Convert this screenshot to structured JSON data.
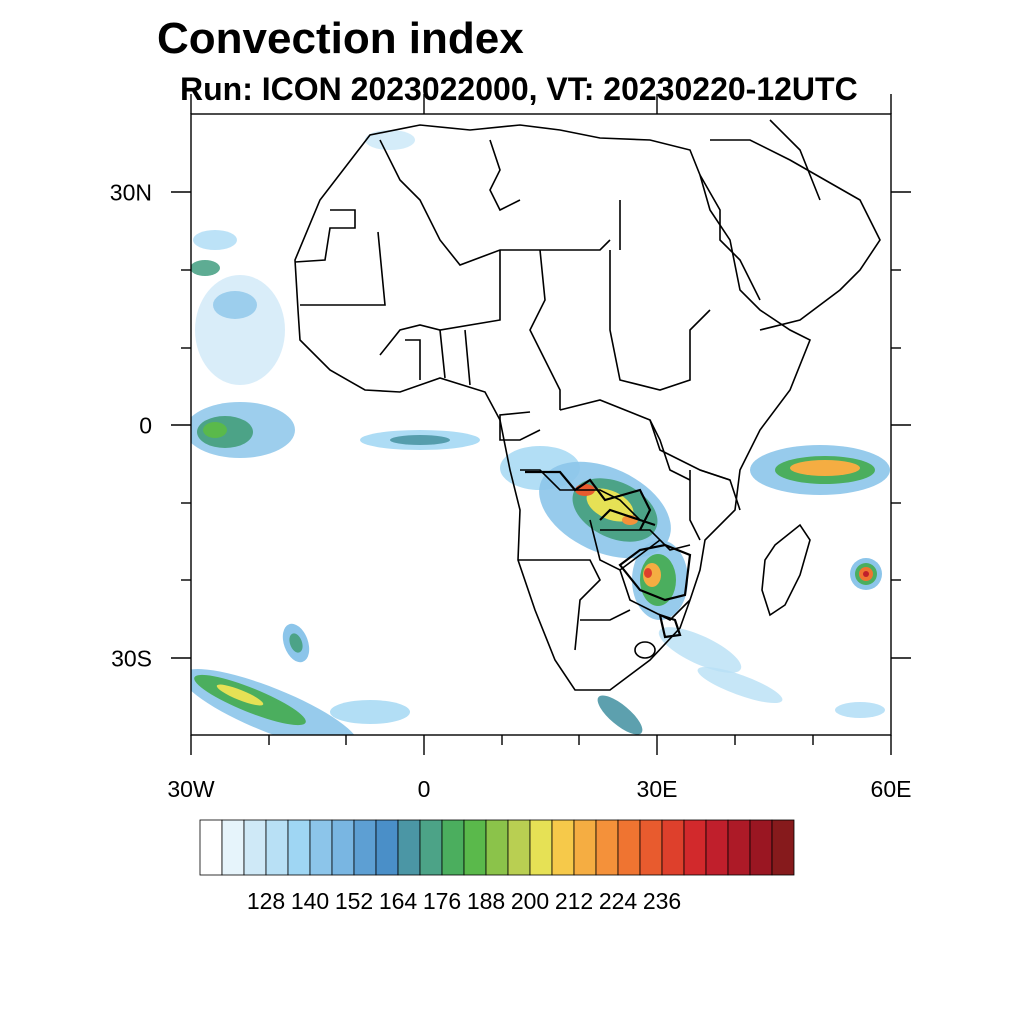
{
  "title": "Convection index",
  "subtitle": "Run: ICON 2023022000,  VT: 20230220-12UTC",
  "map": {
    "lat_labels": [
      "30N",
      "0",
      "30S"
    ],
    "lon_labels": [
      "30W",
      "0",
      "30E",
      "60E"
    ],
    "extent": {
      "lon_min": -30,
      "lon_max": 60,
      "lat_min": -40,
      "lat_max": 40
    }
  },
  "colorbar": {
    "labels": [
      "128",
      "140",
      "152",
      "164",
      "176",
      "188",
      "200",
      "212",
      "224",
      "236"
    ],
    "colors": [
      "#ffffff",
      "#e6f4fb",
      "#cfe9f7",
      "#b8e0f5",
      "#9fd6f3",
      "#8cc5ea",
      "#79b6e2",
      "#5d9fd3",
      "#4a8fc8",
      "#4b96a5",
      "#4ca387",
      "#4bae5e",
      "#5ab94b",
      "#8bc34a",
      "#b9cf52",
      "#e6e155",
      "#f6c94a",
      "#f5ad42",
      "#f4913a",
      "#ef7431",
      "#e85b2e",
      "#de402c",
      "#d2292c",
      "#c01f2c",
      "#ad1a27",
      "#9a1622",
      "#861a1c"
    ]
  }
}
